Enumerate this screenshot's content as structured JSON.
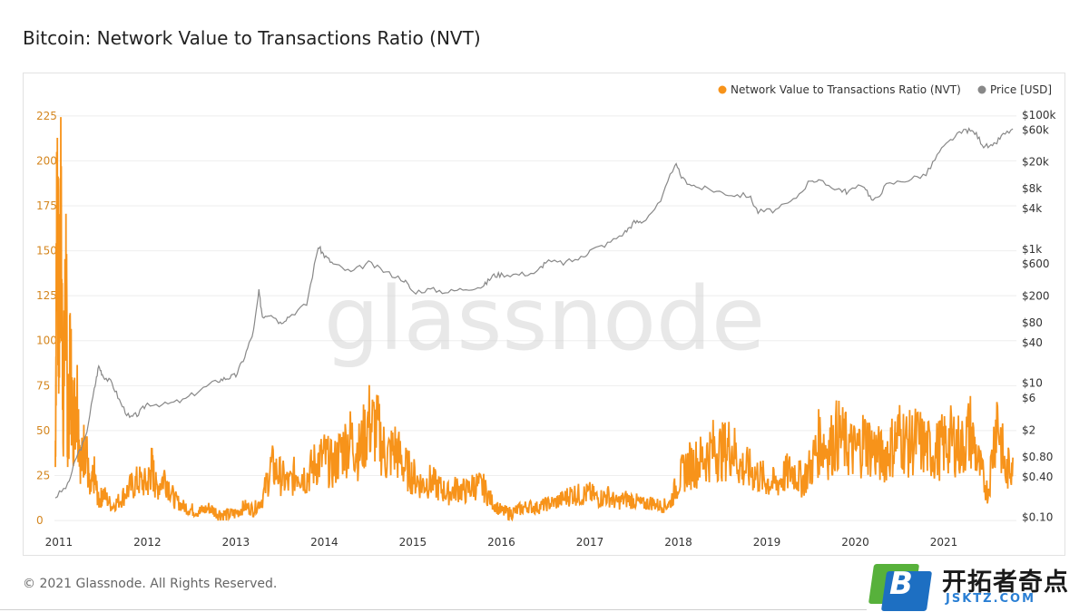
{
  "title": "Bitcoin: Network Value to Transactions Ratio (NVT)",
  "footer": "© 2021 Glassnode. All Rights Reserved.",
  "watermark": "glassnode",
  "brand": {
    "box_letter": "B",
    "name_cn": "开拓者奇点",
    "name_en": "JSKTZ.COM"
  },
  "colors": {
    "nvt": "#f7931a",
    "price": "#888888",
    "left_axis_text": "#d4861f",
    "grid": "#eeeeee"
  },
  "chart_data": {
    "type": "line",
    "x_axis": {
      "ticks": [
        "2011",
        "2012",
        "2013",
        "2014",
        "2015",
        "2016",
        "2017",
        "2018",
        "2019",
        "2020",
        "2021"
      ],
      "range": [
        2010.95,
        2021.82
      ]
    },
    "y_left": {
      "ticks": [
        0,
        25,
        50,
        75,
        100,
        125,
        150,
        175,
        200,
        225
      ],
      "range": [
        -4,
        235
      ]
    },
    "y_right": {
      "scale": "log",
      "ticks": [
        "$0.10",
        "$0.40",
        "$0.80",
        "$2",
        "$6",
        "$10",
        "$40",
        "$80",
        "$200",
        "$600",
        "$1k",
        "$4k",
        "$8k",
        "$20k",
        "$60k",
        "$100k"
      ],
      "tick_values": [
        0.1,
        0.4,
        0.8,
        2,
        6,
        10,
        40,
        80,
        200,
        600,
        1000,
        4000,
        8000,
        20000,
        60000,
        100000
      ],
      "range": [
        0.07,
        180000
      ]
    },
    "legend": {
      "position": "top-right"
    },
    "series": [
      {
        "name": "Network Value to Transactions Ratio (NVT)",
        "axis": "left",
        "points": [
          [
            2010.96,
            30
          ],
          [
            2010.98,
            200
          ],
          [
            2011.0,
            90
          ],
          [
            2011.02,
            170
          ],
          [
            2011.05,
            60
          ],
          [
            2011.08,
            140
          ],
          [
            2011.1,
            40
          ],
          [
            2011.13,
            90
          ],
          [
            2011.16,
            50
          ],
          [
            2011.2,
            75
          ],
          [
            2011.25,
            30
          ],
          [
            2011.3,
            45
          ],
          [
            2011.35,
            15
          ],
          [
            2011.4,
            25
          ],
          [
            2011.45,
            10
          ],
          [
            2011.5,
            15
          ],
          [
            2011.6,
            8
          ],
          [
            2011.7,
            12
          ],
          [
            2011.8,
            18
          ],
          [
            2011.9,
            22
          ],
          [
            2012.0,
            20
          ],
          [
            2012.05,
            30
          ],
          [
            2012.1,
            18
          ],
          [
            2012.2,
            25
          ],
          [
            2012.3,
            12
          ],
          [
            2012.4,
            8
          ],
          [
            2012.5,
            6
          ],
          [
            2012.6,
            5
          ],
          [
            2012.7,
            7
          ],
          [
            2012.8,
            4
          ],
          [
            2012.9,
            3
          ],
          [
            2013.0,
            4
          ],
          [
            2013.1,
            8
          ],
          [
            2013.2,
            6
          ],
          [
            2013.3,
            12
          ],
          [
            2013.4,
            30
          ],
          [
            2013.5,
            25
          ],
          [
            2013.6,
            20
          ],
          [
            2013.7,
            28
          ],
          [
            2013.8,
            24
          ],
          [
            2013.9,
            32
          ],
          [
            2014.0,
            35
          ],
          [
            2014.1,
            30
          ],
          [
            2014.2,
            40
          ],
          [
            2014.3,
            45
          ],
          [
            2014.4,
            38
          ],
          [
            2014.5,
            55
          ],
          [
            2014.6,
            50
          ],
          [
            2014.7,
            35
          ],
          [
            2014.8,
            40
          ],
          [
            2014.9,
            30
          ],
          [
            2015.0,
            25
          ],
          [
            2015.1,
            20
          ],
          [
            2015.2,
            22
          ],
          [
            2015.3,
            18
          ],
          [
            2015.4,
            15
          ],
          [
            2015.5,
            18
          ],
          [
            2015.6,
            16
          ],
          [
            2015.7,
            20
          ],
          [
            2015.8,
            18
          ],
          [
            2015.9,
            10
          ],
          [
            2016.0,
            5
          ],
          [
            2016.1,
            4
          ],
          [
            2016.2,
            6
          ],
          [
            2016.3,
            8
          ],
          [
            2016.4,
            7
          ],
          [
            2016.5,
            9
          ],
          [
            2016.6,
            10
          ],
          [
            2016.7,
            12
          ],
          [
            2016.8,
            15
          ],
          [
            2016.9,
            14
          ],
          [
            2017.0,
            15
          ],
          [
            2017.1,
            12
          ],
          [
            2017.2,
            14
          ],
          [
            2017.3,
            10
          ],
          [
            2017.4,
            12
          ],
          [
            2017.5,
            11
          ],
          [
            2017.6,
            9
          ],
          [
            2017.7,
            10
          ],
          [
            2017.8,
            8
          ],
          [
            2017.9,
            9
          ],
          [
            2018.0,
            22
          ],
          [
            2018.1,
            30
          ],
          [
            2018.2,
            32
          ],
          [
            2018.3,
            35
          ],
          [
            2018.4,
            40
          ],
          [
            2018.5,
            38
          ],
          [
            2018.6,
            42
          ],
          [
            2018.7,
            30
          ],
          [
            2018.8,
            28
          ],
          [
            2018.9,
            25
          ],
          [
            2019.0,
            22
          ],
          [
            2019.1,
            20
          ],
          [
            2019.2,
            25
          ],
          [
            2019.3,
            28
          ],
          [
            2019.4,
            22
          ],
          [
            2019.5,
            30
          ],
          [
            2019.6,
            45
          ],
          [
            2019.7,
            40
          ],
          [
            2019.8,
            48
          ],
          [
            2019.9,
            42
          ],
          [
            2020.0,
            38
          ],
          [
            2020.1,
            45
          ],
          [
            2020.2,
            40
          ],
          [
            2020.3,
            35
          ],
          [
            2020.4,
            40
          ],
          [
            2020.5,
            48
          ],
          [
            2020.6,
            42
          ],
          [
            2020.7,
            45
          ],
          [
            2020.8,
            40
          ],
          [
            2020.9,
            38
          ],
          [
            2021.0,
            42
          ],
          [
            2021.1,
            45
          ],
          [
            2021.2,
            40
          ],
          [
            2021.3,
            50
          ],
          [
            2021.4,
            30
          ],
          [
            2021.5,
            15
          ],
          [
            2021.6,
            60
          ],
          [
            2021.7,
            25
          ],
          [
            2021.78,
            35
          ]
        ]
      },
      {
        "name": "Price [USD]",
        "axis": "right",
        "points": [
          [
            2010.96,
            0.2
          ],
          [
            2011.1,
            0.3
          ],
          [
            2011.2,
            0.8
          ],
          [
            2011.3,
            1.5
          ],
          [
            2011.4,
            8
          ],
          [
            2011.45,
            18
          ],
          [
            2011.5,
            13
          ],
          [
            2011.6,
            10
          ],
          [
            2011.7,
            5
          ],
          [
            2011.8,
            3
          ],
          [
            2011.9,
            3.5
          ],
          [
            2012.0,
            5
          ],
          [
            2012.2,
            4.8
          ],
          [
            2012.4,
            5.5
          ],
          [
            2012.6,
            8
          ],
          [
            2012.8,
            11
          ],
          [
            2012.9,
            12
          ],
          [
            2013.0,
            13
          ],
          [
            2013.1,
            25
          ],
          [
            2013.2,
            60
          ],
          [
            2013.26,
            230
          ],
          [
            2013.3,
            100
          ],
          [
            2013.4,
            110
          ],
          [
            2013.5,
            80
          ],
          [
            2013.6,
            100
          ],
          [
            2013.8,
            150
          ],
          [
            2013.93,
            1100
          ],
          [
            2014.0,
            800
          ],
          [
            2014.1,
            600
          ],
          [
            2014.3,
            450
          ],
          [
            2014.5,
            620
          ],
          [
            2014.7,
            450
          ],
          [
            2014.9,
            350
          ],
          [
            2015.0,
            230
          ],
          [
            2015.2,
            250
          ],
          [
            2015.4,
            230
          ],
          [
            2015.6,
            260
          ],
          [
            2015.8,
            280
          ],
          [
            2015.9,
            400
          ],
          [
            2016.0,
            420
          ],
          [
            2016.2,
            420
          ],
          [
            2016.4,
            450
          ],
          [
            2016.5,
            650
          ],
          [
            2016.7,
            620
          ],
          [
            2016.9,
            740
          ],
          [
            2017.0,
            950
          ],
          [
            2017.2,
            1200
          ],
          [
            2017.4,
            1800
          ],
          [
            2017.5,
            2500
          ],
          [
            2017.6,
            2600
          ],
          [
            2017.8,
            5000
          ],
          [
            2017.96,
            19000
          ],
          [
            2018.05,
            11000
          ],
          [
            2018.2,
            8500
          ],
          [
            2018.4,
            7500
          ],
          [
            2018.6,
            6500
          ],
          [
            2018.8,
            6300
          ],
          [
            2018.9,
            3600
          ],
          [
            2019.1,
            3800
          ],
          [
            2019.3,
            5300
          ],
          [
            2019.5,
            11000
          ],
          [
            2019.6,
            10000
          ],
          [
            2019.8,
            8000
          ],
          [
            2019.9,
            7200
          ],
          [
            2020.1,
            9000
          ],
          [
            2020.2,
            5000
          ],
          [
            2020.35,
            9000
          ],
          [
            2020.6,
            11000
          ],
          [
            2020.8,
            13000
          ],
          [
            2020.95,
            28000
          ],
          [
            2021.1,
            45000
          ],
          [
            2021.25,
            60000
          ],
          [
            2021.35,
            55000
          ],
          [
            2021.45,
            35000
          ],
          [
            2021.55,
            33000
          ],
          [
            2021.65,
            48000
          ],
          [
            2021.78,
            62000
          ]
        ]
      }
    ]
  }
}
